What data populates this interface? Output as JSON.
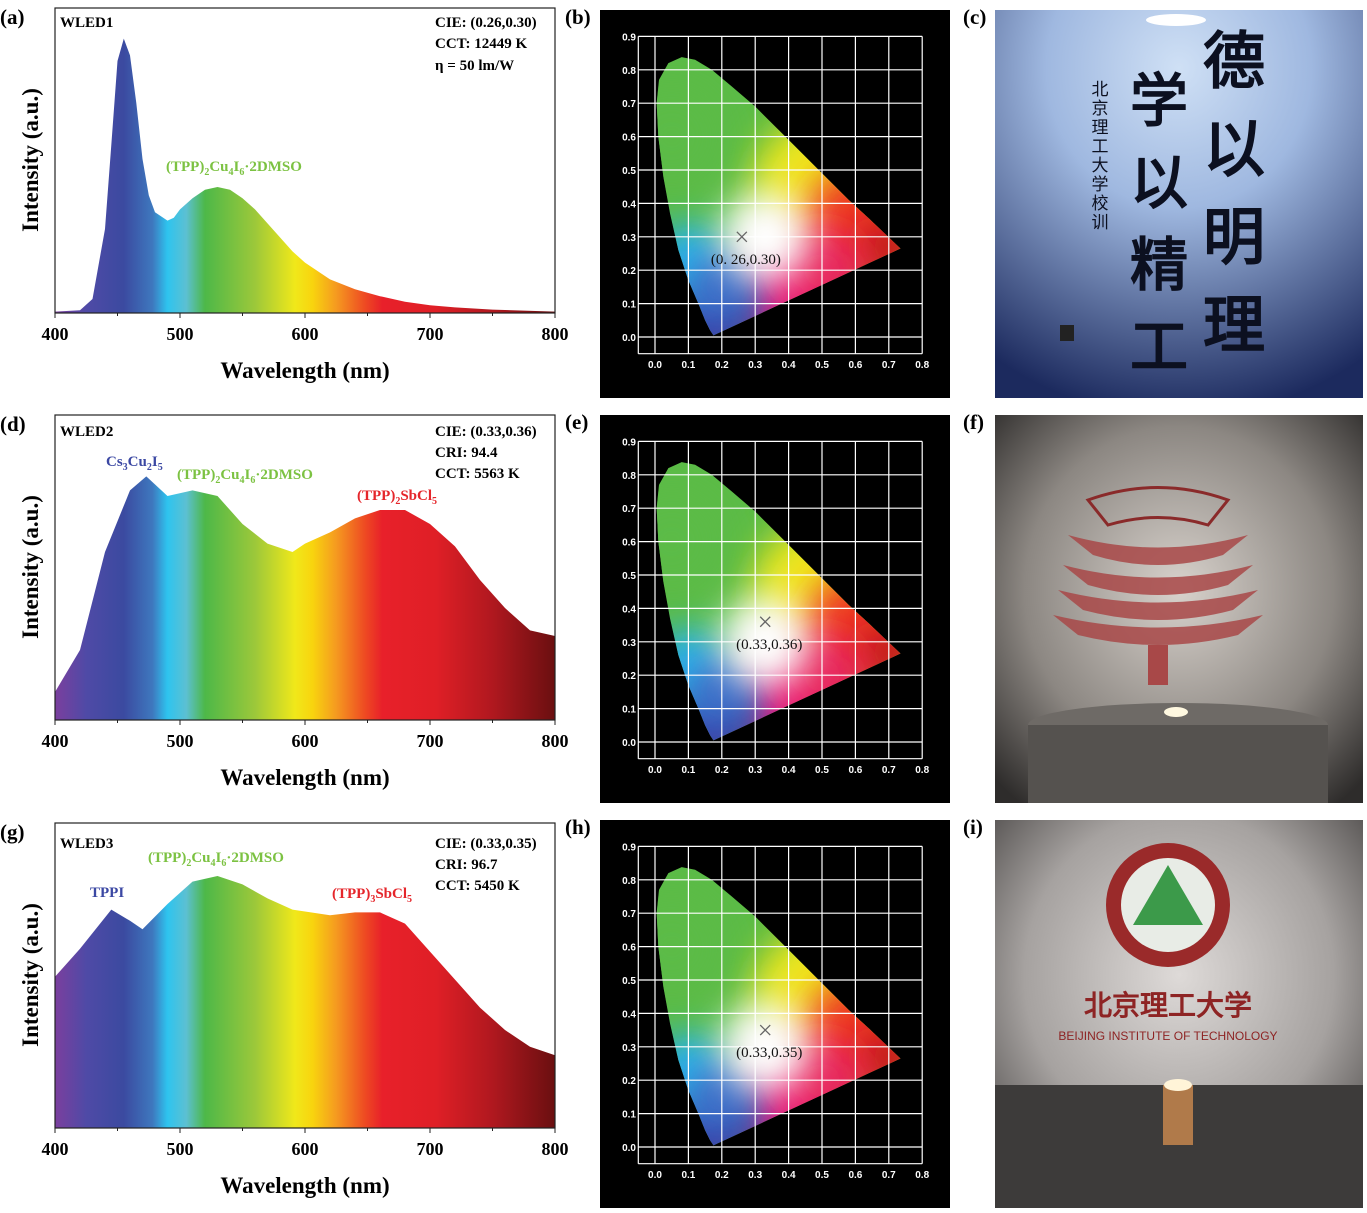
{
  "colors": {
    "component_blue": "#3b48a3",
    "component_green": "#7cc242",
    "component_red": "#e5262b",
    "cie_background": "#000000",
    "grid": "#ffffff"
  },
  "chart_data": [
    {
      "panel": "(a)",
      "type": "area",
      "title": "WLED1",
      "xlabel": "Wavelength (nm)",
      "ylabel": "Intensity (a.u.)",
      "xlim": [
        400,
        800
      ],
      "xticks": [
        "400",
        "500",
        "600",
        "700",
        "800"
      ],
      "info": [
        "CIE: (0.26,0.30)",
        "CCT: 12449 K",
        "η = 50 lm/W"
      ],
      "components": [
        {
          "segments": [
            [
              "(TPP)",
              ""
            ],
            [
              "2",
              "sub"
            ],
            [
              "Cu",
              ""
            ],
            [
              "4",
              "sub"
            ],
            [
              "I",
              ""
            ],
            [
              "6",
              "sub"
            ],
            [
              "·2DMSO",
              ""
            ]
          ],
          "color": "#7cc242"
        }
      ],
      "x": [
        400,
        420,
        430,
        440,
        445,
        450,
        455,
        460,
        465,
        470,
        475,
        480,
        490,
        495,
        500,
        510,
        520,
        530,
        540,
        550,
        560,
        570,
        580,
        590,
        600,
        620,
        640,
        660,
        680,
        700,
        720,
        750,
        800
      ],
      "y": [
        0.005,
        0.01,
        0.05,
        0.3,
        0.6,
        0.9,
        0.98,
        0.92,
        0.75,
        0.55,
        0.42,
        0.36,
        0.33,
        0.34,
        0.37,
        0.41,
        0.44,
        0.45,
        0.44,
        0.41,
        0.37,
        0.32,
        0.27,
        0.22,
        0.18,
        0.12,
        0.085,
        0.06,
        0.04,
        0.028,
        0.02,
        0.012,
        0.005
      ]
    },
    {
      "panel": "(b)",
      "type": "scatter",
      "subtype": "CIE 1931 chromaticity diagram",
      "xlim": [
        0.0,
        0.8
      ],
      "ylim": [
        0.0,
        0.9
      ],
      "xticks": [
        "0.0",
        "0.1",
        "0.2",
        "0.3",
        "0.4",
        "0.5",
        "0.6",
        "0.7",
        "0.8"
      ],
      "yticks": [
        "0.0",
        "0.1",
        "0.2",
        "0.3",
        "0.4",
        "0.5",
        "0.6",
        "0.7",
        "0.8",
        "0.9"
      ],
      "grid": true,
      "point": [
        0.26,
        0.3
      ],
      "point_label": "(0. 26,0.30)"
    },
    {
      "panel": "(d)",
      "type": "area",
      "title": "WLED2",
      "xlabel": "Wavelength (nm)",
      "ylabel": "Intensity (a.u.)",
      "xlim": [
        400,
        800
      ],
      "xticks": [
        "400",
        "500",
        "600",
        "700",
        "800"
      ],
      "info": [
        "CIE: (0.33,0.36)",
        "CRI: 94.4",
        "CCT: 5563 K"
      ],
      "components": [
        {
          "segments": [
            [
              "Cs",
              ""
            ],
            [
              "3",
              "sub"
            ],
            [
              "Cu",
              ""
            ],
            [
              "2",
              "sub"
            ],
            [
              "I",
              ""
            ],
            [
              "5",
              "sub"
            ]
          ],
          "color": "#3b48a3"
        },
        {
          "segments": [
            [
              "(TPP)",
              ""
            ],
            [
              "2",
              "sub"
            ],
            [
              "Cu",
              ""
            ],
            [
              "4",
              "sub"
            ],
            [
              "I",
              ""
            ],
            [
              "6",
              "sub"
            ],
            [
              "·2DMSO",
              ""
            ]
          ],
          "color": "#7cc242"
        },
        {
          "segments": [
            [
              "(TPP)",
              ""
            ],
            [
              "2",
              "sub"
            ],
            [
              "SbCl",
              ""
            ],
            [
              "5",
              "sub"
            ]
          ],
          "color": "#e5262b"
        }
      ],
      "x": [
        400,
        420,
        440,
        460,
        473,
        490,
        510,
        530,
        550,
        570,
        590,
        600,
        620,
        640,
        660,
        680,
        700,
        720,
        740,
        760,
        780,
        800
      ],
      "y": [
        0.1,
        0.25,
        0.6,
        0.82,
        0.87,
        0.8,
        0.82,
        0.8,
        0.7,
        0.63,
        0.6,
        0.63,
        0.67,
        0.72,
        0.75,
        0.75,
        0.7,
        0.62,
        0.5,
        0.4,
        0.32,
        0.3
      ]
    },
    {
      "panel": "(e)",
      "type": "scatter",
      "subtype": "CIE 1931 chromaticity diagram",
      "xlim": [
        0.0,
        0.8
      ],
      "ylim": [
        0.0,
        0.9
      ],
      "xticks": [
        "0.0",
        "0.1",
        "0.2",
        "0.3",
        "0.4",
        "0.5",
        "0.6",
        "0.7",
        "0.8"
      ],
      "yticks": [
        "0.0",
        "0.1",
        "0.2",
        "0.3",
        "0.4",
        "0.5",
        "0.6",
        "0.7",
        "0.8",
        "0.9"
      ],
      "grid": true,
      "point": [
        0.33,
        0.36
      ],
      "point_label": "(0.33,0.36)"
    },
    {
      "panel": "(g)",
      "type": "area",
      "title": "WLED3",
      "xlabel": "Wavelength (nm)",
      "ylabel": "Intensity (a.u.)",
      "xlim": [
        400,
        800
      ],
      "xticks": [
        "400",
        "500",
        "600",
        "700",
        "800"
      ],
      "info": [
        "CIE: (0.33,0.35)",
        "CRI: 96.7",
        "CCT: 5450 K"
      ],
      "components": [
        {
          "segments": [
            [
              "TPPI",
              ""
            ]
          ],
          "color": "#3b48a3"
        },
        {
          "segments": [
            [
              "(TPP)",
              ""
            ],
            [
              "2",
              "sub"
            ],
            [
              "Cu",
              ""
            ],
            [
              "4",
              "sub"
            ],
            [
              "I",
              ""
            ],
            [
              "6",
              "sub"
            ],
            [
              "·2DMSO",
              ""
            ]
          ],
          "color": "#7cc242"
        },
        {
          "segments": [
            [
              "(TPP)",
              ""
            ],
            [
              "3",
              "sub"
            ],
            [
              "SbCl",
              ""
            ],
            [
              "5",
              "sub"
            ]
          ],
          "color": "#e5262b"
        }
      ],
      "x": [
        400,
        420,
        445,
        460,
        470,
        490,
        510,
        530,
        550,
        570,
        590,
        620,
        640,
        660,
        680,
        700,
        720,
        740,
        760,
        780,
        800
      ],
      "y": [
        0.54,
        0.64,
        0.78,
        0.74,
        0.71,
        0.8,
        0.88,
        0.9,
        0.87,
        0.82,
        0.78,
        0.76,
        0.77,
        0.77,
        0.73,
        0.63,
        0.53,
        0.43,
        0.35,
        0.29,
        0.26
      ]
    },
    {
      "panel": "(h)",
      "type": "scatter",
      "subtype": "CIE 1931 chromaticity diagram",
      "xlim": [
        0.0,
        0.8
      ],
      "ylim": [
        0.0,
        0.9
      ],
      "xticks": [
        "0.0",
        "0.1",
        "0.2",
        "0.3",
        "0.4",
        "0.5",
        "0.6",
        "0.7",
        "0.8"
      ],
      "yticks": [
        "0.0",
        "0.1",
        "0.2",
        "0.3",
        "0.4",
        "0.5",
        "0.6",
        "0.7",
        "0.8",
        "0.9"
      ],
      "grid": true,
      "point": [
        0.33,
        0.35
      ],
      "point_label": "(0.33,0.35)"
    }
  ],
  "photos": [
    {
      "panel": "(c)",
      "description_lettering": [
        "德以明理",
        "学以精工",
        "北京理工大学校训"
      ]
    },
    {
      "panel": "(f)"
    },
    {
      "panel": "(i)",
      "logo_text_cn": "北京理工大学",
      "logo_text_en": "BEIJING INSTITUTE OF TECHNOLOGY"
    }
  ]
}
